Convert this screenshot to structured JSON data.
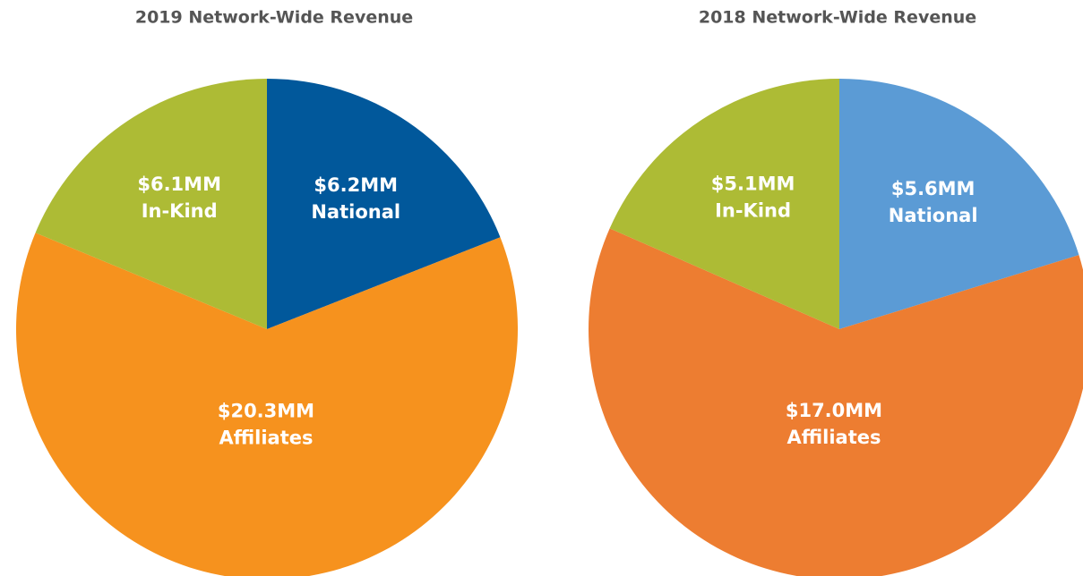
{
  "chart_data": [
    {
      "type": "pie",
      "title": "2019 Network-Wide Revenue",
      "categories": [
        "National",
        "Affiliates",
        "In-Kind"
      ],
      "values": [
        6.2,
        20.3,
        6.1
      ],
      "value_labels": [
        "$6.2MM",
        "$20.3MM",
        "$6.1MM"
      ],
      "colors": [
        "#01589b",
        "#f6921e",
        "#adbb35"
      ]
    },
    {
      "type": "pie",
      "title": "2018 Network-Wide Revenue",
      "categories": [
        "National",
        "Affiliates",
        "In-Kind"
      ],
      "values": [
        5.6,
        17.0,
        5.1
      ],
      "value_labels": [
        "$5.6MM",
        "$17.0MM",
        "$5.1MM"
      ],
      "colors": [
        "#5b9bd5",
        "#ed7d31",
        "#adbb35"
      ]
    }
  ]
}
